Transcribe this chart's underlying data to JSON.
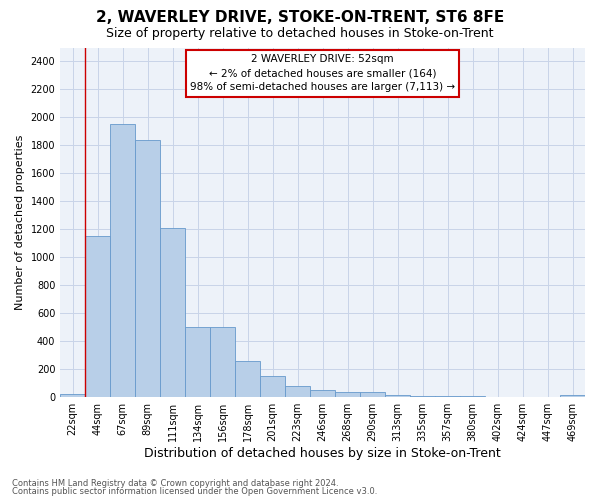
{
  "title": "2, WAVERLEY DRIVE, STOKE-ON-TRENT, ST6 8FE",
  "subtitle": "Size of property relative to detached houses in Stoke-on-Trent",
  "xlabel": "Distribution of detached houses by size in Stoke-on-Trent",
  "ylabel": "Number of detached properties",
  "categories": [
    "22sqm",
    "44sqm",
    "67sqm",
    "89sqm",
    "111sqm",
    "134sqm",
    "156sqm",
    "178sqm",
    "201sqm",
    "223sqm",
    "246sqm",
    "268sqm",
    "290sqm",
    "313sqm",
    "335sqm",
    "357sqm",
    "380sqm",
    "402sqm",
    "424sqm",
    "447sqm",
    "469sqm"
  ],
  "values": [
    25,
    1150,
    1950,
    1840,
    1210,
    505,
    505,
    260,
    155,
    80,
    55,
    40,
    40,
    18,
    10,
    10,
    8,
    5,
    5,
    5,
    18
  ],
  "bar_color": "#b8cfe8",
  "bar_edge_color": "#6699cc",
  "property_line_color": "#cc0000",
  "annotation_text": "2 WAVERLEY DRIVE: 52sqm\n← 2% of detached houses are smaller (164)\n98% of semi-detached houses are larger (7,113) →",
  "annotation_box_color": "#ffffff",
  "annotation_box_edge_color": "#cc0000",
  "ylim": [
    0,
    2500
  ],
  "yticks": [
    0,
    200,
    400,
    600,
    800,
    1000,
    1200,
    1400,
    1600,
    1800,
    2000,
    2200,
    2400
  ],
  "footer_line1": "Contains HM Land Registry data © Crown copyright and database right 2024.",
  "footer_line2": "Contains public sector information licensed under the Open Government Licence v3.0.",
  "title_fontsize": 11,
  "subtitle_fontsize": 9,
  "xlabel_fontsize": 9,
  "ylabel_fontsize": 8,
  "tick_fontsize": 7,
  "footer_fontsize": 6,
  "grid_color": "#c8d4e8",
  "bg_color": "#ffffff",
  "plot_bg_color": "#edf2f9"
}
